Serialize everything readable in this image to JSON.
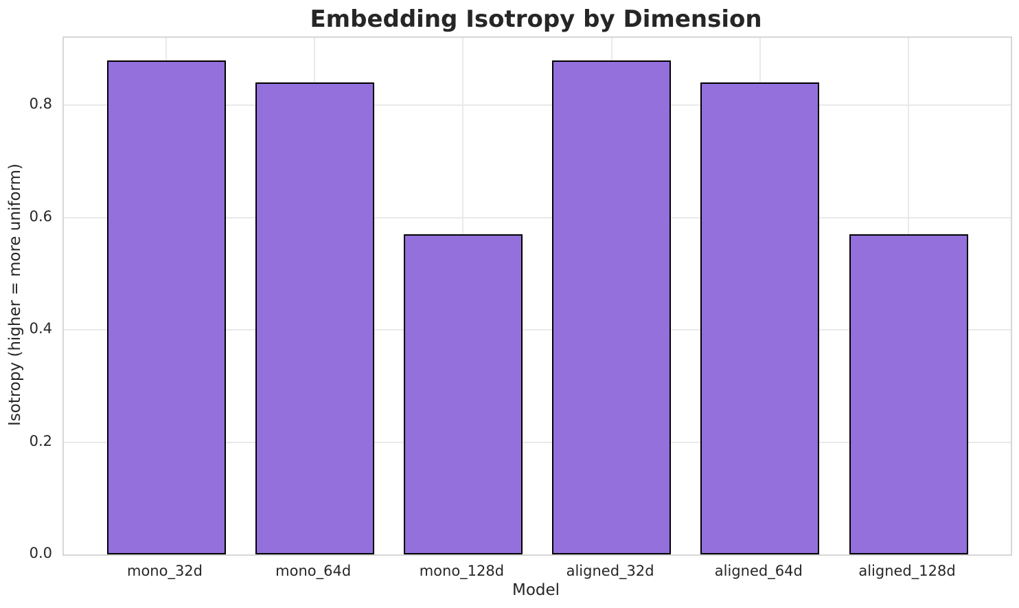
{
  "chart_data": {
    "type": "bar",
    "title": "Embedding Isotropy by Dimension",
    "xlabel": "Model",
    "ylabel": "Isotropy (higher = more uniform)",
    "categories": [
      "mono_32d",
      "mono_64d",
      "mono_128d",
      "aligned_32d",
      "aligned_64d",
      "aligned_128d"
    ],
    "values": [
      0.88,
      0.84,
      0.57,
      0.88,
      0.84,
      0.57
    ],
    "yticks": [
      0.0,
      0.2,
      0.4,
      0.6,
      0.8
    ],
    "ytick_labels": [
      "0.0",
      "0.2",
      "0.4",
      "0.6",
      "0.8"
    ],
    "ylim": [
      0,
      0.92
    ],
    "grid": true,
    "legend": null,
    "bar_color": "#9370DB",
    "bar_edge_color": "#000000",
    "grid_color": "#e9e9e9",
    "spine_color": "#d6d6d6",
    "text_color": "#262626"
  }
}
